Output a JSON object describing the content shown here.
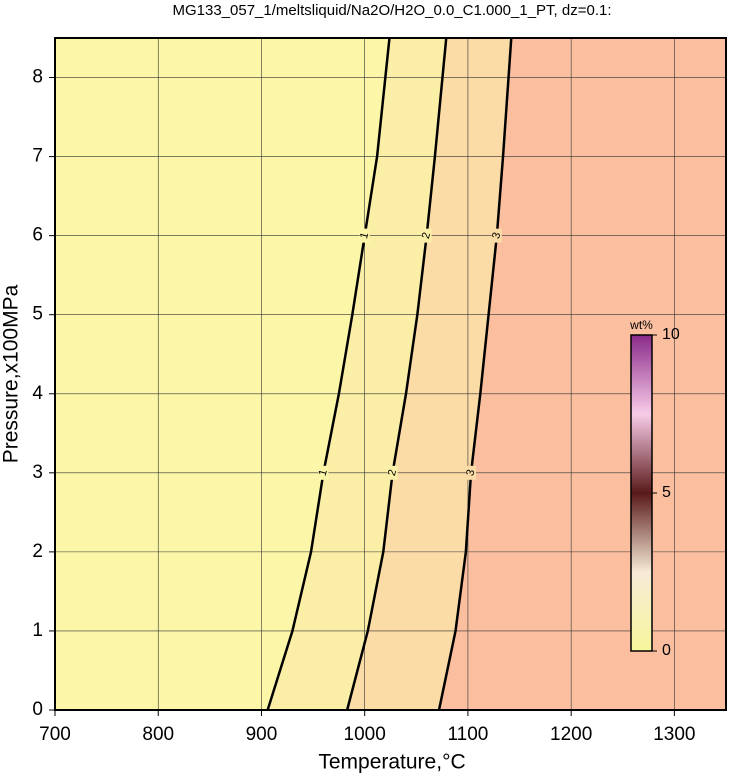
{
  "chart_data": {
    "type": "contour",
    "title": "MG133_057_1/meltsliquid/Na2O/H2O_0.0_C1.000_1_PT, dz=0.1:",
    "xlabel": "Temperature,°C",
    "ylabel": "Pressure,x100MPa",
    "xlim": [
      700,
      1350
    ],
    "ylim": [
      0,
      8.5
    ],
    "xticks": [
      700,
      800,
      900,
      1000,
      1100,
      1200,
      1300
    ],
    "yticks": [
      0,
      1,
      2,
      3,
      4,
      5,
      6,
      7,
      8
    ],
    "grid": true,
    "series": [
      {
        "name": "1",
        "color": "#000000",
        "x": [
          906,
          930,
          948,
          960,
          975,
          988,
          1000,
          1012,
          1024
        ],
        "values": [
          0,
          1,
          2,
          3,
          4,
          5,
          6,
          7,
          8.5
        ]
      },
      {
        "name": "2",
        "color": "#000000",
        "x": [
          983,
          1003,
          1018,
          1027,
          1040,
          1051,
          1060,
          1068,
          1079
        ],
        "values": [
          0,
          1,
          2,
          3,
          4,
          5,
          6,
          7,
          8.5
        ]
      },
      {
        "name": "3",
        "color": "#000000",
        "x": [
          1072,
          1088,
          1098,
          1103,
          1112,
          1120,
          1128,
          1134,
          1142
        ],
        "values": [
          0,
          1,
          2,
          3,
          4,
          5,
          6,
          7,
          8.5
        ]
      }
    ],
    "region_colors": [
      "#fbf6a8",
      "#fbeea6",
      "#fbdba6",
      "#fbbfa0"
    ],
    "colorbar": {
      "label": "wt%",
      "lim": [
        0,
        10
      ],
      "ticks": [
        0,
        5,
        10
      ],
      "colors": [
        "#f7f59c",
        "#f6ead6",
        "#5a1a1a",
        "#f8cce8",
        "#8a2a8a"
      ]
    }
  }
}
